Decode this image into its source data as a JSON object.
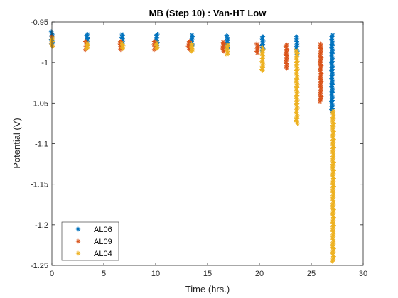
{
  "chart_data": {
    "type": "scatter",
    "title": "MB (Step 10) : Van-HT Low",
    "xlabel": "Time (hrs.)",
    "ylabel": "Potential (V)",
    "xlim": [
      0,
      30
    ],
    "ylim": [
      -1.25,
      -0.95
    ],
    "xticks": [
      0,
      5,
      10,
      15,
      20,
      25,
      30
    ],
    "xtick_labels": [
      "0",
      "5",
      "10",
      "15",
      "20",
      "25",
      "30"
    ],
    "yticks": [
      -0.95,
      -1.0,
      -1.05,
      -1.1,
      -1.15,
      -1.2,
      -1.25
    ],
    "ytick_labels": [
      "-0.95",
      "-1",
      "-1.05",
      "-1.1",
      "-1.15",
      "-1.2",
      "-1.25"
    ],
    "grid": false,
    "legend_position": "bottom-left",
    "marker": "asterisk",
    "series": [
      {
        "name": "AL06",
        "color": "#0072BD",
        "clusters": [
          {
            "x": 0.0,
            "y_top": -0.962,
            "y_bottom": -0.977
          },
          {
            "x": 3.4,
            "y_top": -0.965,
            "y_bottom": -0.978
          },
          {
            "x": 6.8,
            "y_top": -0.965,
            "y_bottom": -0.978
          },
          {
            "x": 10.1,
            "y_top": -0.965,
            "y_bottom": -0.979
          },
          {
            "x": 13.5,
            "y_top": -0.966,
            "y_bottom": -0.98
          },
          {
            "x": 16.9,
            "y_top": -0.967,
            "y_bottom": -0.983
          },
          {
            "x": 20.3,
            "y_top": -0.968,
            "y_bottom": -0.985
          },
          {
            "x": 23.6,
            "y_top": -0.968,
            "y_bottom": -0.99
          },
          {
            "x": 27.0,
            "y_top": -0.966,
            "y_bottom": -1.062
          }
        ]
      },
      {
        "name": "AL09",
        "color": "#D95319",
        "clusters": [
          {
            "x": 0.0,
            "y_top": -0.968,
            "y_bottom": -0.98
          },
          {
            "x": 3.3,
            "y_top": -0.974,
            "y_bottom": -0.984
          },
          {
            "x": 6.6,
            "y_top": -0.974,
            "y_bottom": -0.984
          },
          {
            "x": 9.9,
            "y_top": -0.974,
            "y_bottom": -0.984
          },
          {
            "x": 13.2,
            "y_top": -0.974,
            "y_bottom": -0.984
          },
          {
            "x": 16.5,
            "y_top": -0.975,
            "y_bottom": -0.986
          },
          {
            "x": 19.8,
            "y_top": -0.977,
            "y_bottom": -0.988
          },
          {
            "x": 22.6,
            "y_top": -0.978,
            "y_bottom": -1.007
          },
          {
            "x": 25.9,
            "y_top": -0.977,
            "y_bottom": -1.048
          }
        ]
      },
      {
        "name": "AL04",
        "color": "#EDB120",
        "clusters": [
          {
            "x": 0.0,
            "y_top": -0.97,
            "y_bottom": -0.98
          },
          {
            "x": 3.4,
            "y_top": -0.976,
            "y_bottom": -0.983
          },
          {
            "x": 6.8,
            "y_top": -0.976,
            "y_bottom": -0.983
          },
          {
            "x": 10.1,
            "y_top": -0.976,
            "y_bottom": -0.983
          },
          {
            "x": 13.5,
            "y_top": -0.977,
            "y_bottom": -0.986
          },
          {
            "x": 16.9,
            "y_top": -0.978,
            "y_bottom": -0.99
          },
          {
            "x": 20.3,
            "y_top": -0.982,
            "y_bottom": -1.01
          },
          {
            "x": 23.6,
            "y_top": -0.985,
            "y_bottom": -1.075
          },
          {
            "x": 27.1,
            "y_top": -1.06,
            "y_bottom": -1.245
          }
        ]
      }
    ]
  }
}
